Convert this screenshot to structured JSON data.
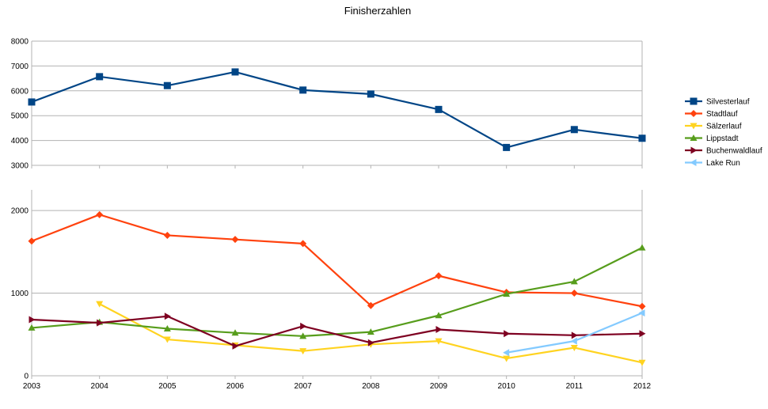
{
  "chart_data": {
    "type": "line",
    "title": "Finisherzahlen",
    "grid": true,
    "legend_position": "right",
    "categories": [
      "2003",
      "2004",
      "2005",
      "2006",
      "2007",
      "2008",
      "2009",
      "2010",
      "2011",
      "2012"
    ],
    "panels": [
      {
        "name": "upper",
        "ylim": [
          3000,
          8000
        ],
        "yticks": [
          "3000",
          "4000",
          "5000",
          "6000",
          "7000",
          "8000"
        ],
        "series": [
          "Silvesterlauf"
        ]
      },
      {
        "name": "lower",
        "ylim": [
          0,
          2250
        ],
        "yticks": [
          "0",
          "1000",
          "2000"
        ],
        "series": [
          "Stadtlauf",
          "Sälzerlauf",
          "Lippstadt",
          "Buchenwaldlauf",
          "Lake Run"
        ]
      }
    ],
    "series": [
      {
        "name": "Silvesterlauf",
        "color": "#004586",
        "marker": "square",
        "values": [
          5550,
          6570,
          6210,
          6760,
          6030,
          5870,
          5250,
          3720,
          4440,
          4090
        ]
      },
      {
        "name": "Stadtlauf",
        "color": "#ff420e",
        "marker": "diamond",
        "values": [
          1630,
          1950,
          1700,
          1650,
          1600,
          850,
          1210,
          1010,
          1000,
          840
        ]
      },
      {
        "name": "Sälzerlauf",
        "color": "#ffd320",
        "marker": "triangle-down",
        "values": [
          null,
          870,
          440,
          370,
          300,
          380,
          420,
          210,
          340,
          160
        ]
      },
      {
        "name": "Lippstadt",
        "color": "#579d1c",
        "marker": "triangle-up",
        "values": [
          580,
          650,
          570,
          520,
          480,
          530,
          730,
          990,
          1140,
          1550
        ]
      },
      {
        "name": "Buchenwaldlauf",
        "color": "#7e0021",
        "marker": "triangle-right",
        "values": [
          680,
          640,
          720,
          360,
          600,
          400,
          560,
          510,
          490,
          510
        ]
      },
      {
        "name": "Lake Run",
        "color": "#83caff",
        "marker": "triangle-left",
        "values": [
          null,
          null,
          null,
          null,
          null,
          null,
          null,
          280,
          420,
          760
        ]
      }
    ]
  }
}
